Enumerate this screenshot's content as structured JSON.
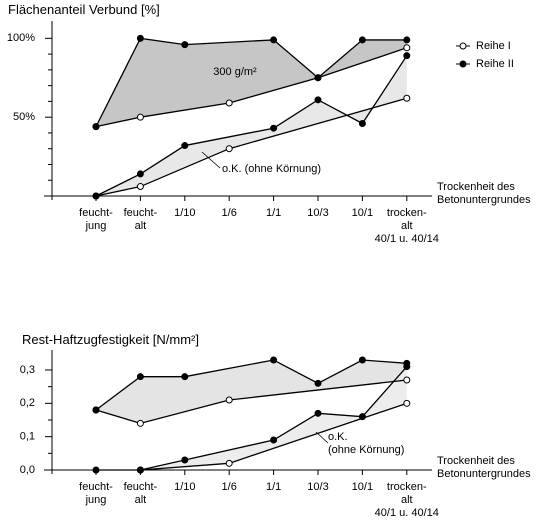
{
  "chart_data": [
    {
      "type": "line",
      "title": "Flächenanteil Verbund [%]",
      "x_label": "Trockenheit des\nBetonuntergrundes",
      "categories": [
        "feucht-\njung",
        "feucht-\nalt",
        "1/10",
        "1/6",
        "1/1",
        "10/3",
        "10/1",
        "trocken-\nalt\n40/1 u. 40/14"
      ],
      "series": [
        {
          "name": "Reihe I",
          "marker": "open",
          "color": "#000000",
          "values": [
            44,
            50,
            null,
            59,
            null,
            75,
            null,
            94
          ]
        },
        {
          "name": "Reihe II",
          "marker": "filled",
          "color": "#000000",
          "values": [
            44,
            100,
            96,
            null,
            99,
            75,
            99,
            99
          ]
        },
        {
          "name": "Reihe I",
          "marker": "open",
          "color": "#000000",
          "values": [
            0,
            6,
            null,
            30,
            null,
            null,
            null,
            62
          ]
        },
        {
          "name": "Reihe II",
          "marker": "filled",
          "color": "#000000",
          "values": [
            0,
            14,
            32,
            null,
            43,
            61,
            46,
            89
          ]
        }
      ],
      "band_colors": [
        "#c6c6c6",
        "#e8e8e8"
      ],
      "annotations": [
        "300 g/m²",
        "o.K. (ohne Körnung)"
      ],
      "ylim": [
        0,
        111
      ],
      "yticks": [
        {
          "value": 50,
          "label": "50%"
        },
        {
          "value": 100,
          "label": "100%"
        }
      ],
      "minor_yticks": [
        10,
        20,
        30,
        40,
        60,
        70,
        80,
        90
      ],
      "legend": "right"
    },
    {
      "type": "line",
      "title": "Rest-Haftzugfestigkeit [N/mm²]",
      "x_label": "Trockenheit des\nBetonuntergrundes",
      "categories": [
        "feucht-\njung",
        "feucht-\nalt",
        "1/10",
        "1/6",
        "1/1",
        "10/3",
        "10/1",
        "trocken-\nalt\n40/1 u. 40/14"
      ],
      "series": [
        {
          "name": "Reihe I",
          "marker": "open",
          "color": "#000000",
          "values": [
            0.18,
            0.14,
            null,
            0.21,
            null,
            null,
            null,
            0.27
          ]
        },
        {
          "name": "Reihe II",
          "marker": "filled",
          "color": "#000000",
          "values": [
            0.18,
            0.28,
            0.28,
            null,
            0.33,
            0.26,
            0.33,
            0.32
          ]
        },
        {
          "name": "Reihe I",
          "marker": "open",
          "color": "#000000",
          "values": [
            null,
            0,
            null,
            0.02,
            null,
            null,
            null,
            0.2
          ]
        },
        {
          "name": "Reihe II",
          "marker": "filled",
          "color": "#000000",
          "values": [
            0,
            0,
            0.03,
            null,
            0.09,
            0.17,
            0.16,
            0.31
          ]
        }
      ],
      "band_colors": [
        "#e4e4e4",
        "#ededed"
      ],
      "annotations": [
        "o.K.\n(ohne Körnung)"
      ],
      "ylim": [
        0,
        0.36
      ],
      "yticks": [
        {
          "value": 0,
          "label": "0,0"
        },
        {
          "value": 0.1,
          "label": "0,1"
        },
        {
          "value": 0.2,
          "label": "0,2"
        },
        {
          "value": 0.3,
          "label": "0,3"
        }
      ],
      "minor_yticks": [
        0.05,
        0.15,
        0.25
      ]
    }
  ]
}
